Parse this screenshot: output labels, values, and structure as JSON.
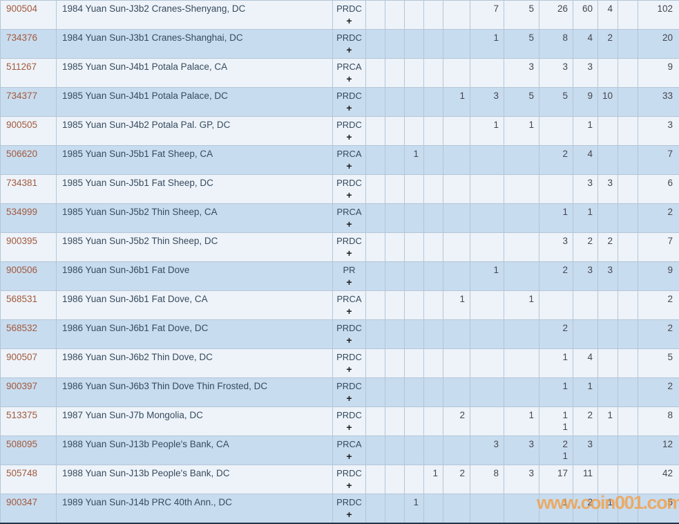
{
  "watermark": {
    "text": "www.coin001.com",
    "color": "#f29d42"
  },
  "colors": {
    "row_light": "#edf3f9",
    "row_blue": "#c8dcef",
    "cell_border": "#b4c5d7",
    "bottom_border": "#233448",
    "id_link": "#a2593c",
    "description_text": "#374a5e",
    "number_text": "#44454e"
  },
  "table": {
    "rows": [
      {
        "id": "900504",
        "description": "1984 Yuan Sun-J3b2 Cranes-Shenyang, DC",
        "grade": "PRDC",
        "expand": "+",
        "counts": [
          "",
          "",
          "",
          "",
          "",
          "7",
          "5",
          "26",
          "60",
          "4",
          ""
        ],
        "total": "102"
      },
      {
        "id": "734376",
        "description": "1984 Yuan Sun-J3b1 Cranes-Shanghai, DC",
        "grade": "PRDC",
        "expand": "+",
        "counts": [
          "",
          "",
          "",
          "",
          "",
          "1",
          "5",
          "8",
          "4",
          "2",
          ""
        ],
        "total": "20"
      },
      {
        "id": "511267",
        "description": "1985 Yuan Sun-J4b1 Potala Palace, CA",
        "grade": "PRCA",
        "expand": "+",
        "counts": [
          "",
          "",
          "",
          "",
          "",
          "",
          "3",
          "3",
          "3",
          "",
          ""
        ],
        "total": "9"
      },
      {
        "id": "734377",
        "description": "1985 Yuan Sun-J4b1 Potala Palace, DC",
        "grade": "PRDC",
        "expand": "+",
        "counts": [
          "",
          "",
          "",
          "",
          "1",
          "3",
          "5",
          "5",
          "9",
          "10",
          ""
        ],
        "total": "33"
      },
      {
        "id": "900505",
        "description": "1985 Yuan Sun-J4b2 Potala Pal. GP, DC",
        "grade": "PRDC",
        "expand": "+",
        "counts": [
          "",
          "",
          "",
          "",
          "",
          "1",
          "1",
          "",
          "1",
          "",
          ""
        ],
        "total": "3"
      },
      {
        "id": "506620",
        "description": "1985 Yuan Sun-J5b1 Fat Sheep, CA",
        "grade": "PRCA",
        "expand": "+",
        "counts": [
          "",
          "",
          "1",
          "",
          "",
          "",
          "",
          "2",
          "4",
          "",
          ""
        ],
        "total": "7"
      },
      {
        "id": "734381",
        "description": "1985 Yuan Sun-J5b1 Fat Sheep, DC",
        "grade": "PRDC",
        "expand": "+",
        "counts": [
          "",
          "",
          "",
          "",
          "",
          "",
          "",
          "",
          "3",
          "3",
          ""
        ],
        "total": "6"
      },
      {
        "id": "534999",
        "description": "1985 Yuan Sun-J5b2 Thin Sheep, CA",
        "grade": "PRCA",
        "expand": "+",
        "counts": [
          "",
          "",
          "",
          "",
          "",
          "",
          "",
          "1",
          "1",
          "",
          ""
        ],
        "total": "2"
      },
      {
        "id": "900395",
        "description": "1985 Yuan Sun-J5b2 Thin Sheep, DC",
        "grade": "PRDC",
        "expand": "+",
        "counts": [
          "",
          "",
          "",
          "",
          "",
          "",
          "",
          "3",
          "2",
          "2",
          ""
        ],
        "total": "7"
      },
      {
        "id": "900506",
        "description": "1986 Yuan Sun-J6b1 Fat Dove",
        "grade": "PR",
        "expand": "+",
        "counts": [
          "",
          "",
          "",
          "",
          "",
          "1",
          "",
          "2",
          "3",
          "3",
          ""
        ],
        "total": "9"
      },
      {
        "id": "568531",
        "description": "1986 Yuan Sun-J6b1 Fat Dove, CA",
        "grade": "PRCA",
        "expand": "+",
        "counts": [
          "",
          "",
          "",
          "",
          "1",
          "",
          "1",
          "",
          "",
          "",
          ""
        ],
        "total": "2"
      },
      {
        "id": "568532",
        "description": "1986 Yuan Sun-J6b1 Fat Dove, DC",
        "grade": "PRDC",
        "expand": "+",
        "counts": [
          "",
          "",
          "",
          "",
          "",
          "",
          "",
          "2",
          "",
          "",
          ""
        ],
        "total": "2"
      },
      {
        "id": "900507",
        "description": "1986 Yuan Sun-J6b2 Thin Dove, DC",
        "grade": "PRDC",
        "expand": "+",
        "counts": [
          "",
          "",
          "",
          "",
          "",
          "",
          "",
          "1",
          "4",
          "",
          ""
        ],
        "total": "5"
      },
      {
        "id": "900397",
        "description": "1986 Yuan Sun-J6b3 Thin Dove Thin Frosted, DC",
        "grade": "PRDC",
        "expand": "+",
        "counts": [
          "",
          "",
          "",
          "",
          "",
          "",
          "",
          "1",
          "1",
          "",
          ""
        ],
        "total": "2"
      },
      {
        "id": "513375",
        "description": "1987 Yuan Sun-J7b Mongolia, DC",
        "grade": "PRDC",
        "expand": "+",
        "counts": [
          "",
          "",
          "",
          "",
          "2",
          "",
          "1",
          [
            "1",
            "1"
          ],
          "2",
          "1",
          ""
        ],
        "total": "8"
      },
      {
        "id": "508095",
        "description": "1988 Yuan Sun-J13b People's Bank, CA",
        "grade": "PRCA",
        "expand": "+",
        "counts": [
          "",
          "",
          "",
          "",
          "",
          "3",
          "3",
          [
            "2",
            "1"
          ],
          "3",
          "",
          ""
        ],
        "total": "12"
      },
      {
        "id": "505748",
        "description": "1988 Yuan Sun-J13b People's Bank, DC",
        "grade": "PRDC",
        "expand": "+",
        "counts": [
          "",
          "",
          "",
          "1",
          "2",
          "8",
          "3",
          "17",
          "11",
          "",
          ""
        ],
        "total": "42"
      },
      {
        "id": "900347",
        "description": "1989 Yuan Sun-J14b PRC 40th Ann., DC",
        "grade": "PRDC",
        "expand": "+",
        "counts": [
          "",
          "",
          "1",
          "",
          "",
          "",
          "",
          "1",
          "2",
          "1",
          ""
        ],
        "total": "5"
      }
    ]
  }
}
